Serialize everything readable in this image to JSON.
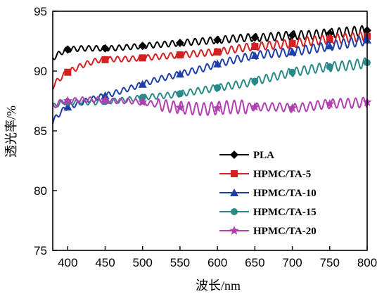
{
  "chart_data": {
    "type": "line",
    "title": "",
    "xlabel": "波长/nm",
    "ylabel": "透光率/%",
    "xlim": [
      380,
      800
    ],
    "ylim": [
      75,
      95
    ],
    "xticks": [
      400,
      450,
      500,
      550,
      600,
      650,
      700,
      750,
      800
    ],
    "yticks": [
      75,
      80,
      85,
      90,
      95
    ],
    "grid": false,
    "legend_position": "bottom-right",
    "series": [
      {
        "name": "PLA",
        "color": "#000000",
        "marker": "diamond",
        "x": [
          380,
          385,
          390,
          395,
          400,
          420,
          440,
          460,
          480,
          500,
          520,
          540,
          560,
          580,
          600,
          620,
          640,
          660,
          680,
          700,
          720,
          740,
          760,
          780,
          800
        ],
        "y": [
          91.1,
          91.3,
          91.5,
          91.7,
          91.8,
          91.9,
          91.9,
          91.9,
          92.0,
          92.1,
          92.2,
          92.3,
          92.4,
          92.5,
          92.6,
          92.7,
          92.8,
          92.8,
          92.9,
          93.0,
          93.0,
          93.1,
          93.2,
          93.3,
          93.4
        ],
        "marker_x": [
          400,
          450,
          500,
          550,
          600,
          650,
          700,
          750,
          800
        ]
      },
      {
        "name": "HPMC/TA-5",
        "color": "#d42020",
        "marker": "square",
        "x": [
          380,
          385,
          390,
          395,
          400,
          420,
          440,
          460,
          480,
          500,
          520,
          540,
          560,
          580,
          600,
          620,
          640,
          660,
          680,
          700,
          720,
          740,
          760,
          780,
          800
        ],
        "y": [
          88.7,
          89.1,
          89.4,
          89.7,
          89.9,
          90.5,
          90.9,
          91.0,
          91.0,
          91.1,
          91.2,
          91.3,
          91.4,
          91.5,
          91.6,
          91.8,
          92.0,
          92.1,
          92.2,
          92.3,
          92.5,
          92.6,
          92.7,
          92.8,
          92.9
        ],
        "marker_x": [
          400,
          450,
          500,
          550,
          600,
          650,
          700,
          750,
          800
        ]
      },
      {
        "name": "HPMC/TA-10",
        "color": "#1f3fa8",
        "marker": "triangle",
        "x": [
          380,
          385,
          390,
          395,
          400,
          420,
          440,
          460,
          480,
          500,
          520,
          540,
          560,
          580,
          600,
          620,
          640,
          660,
          680,
          700,
          720,
          740,
          760,
          780,
          800
        ],
        "y": [
          85.7,
          86.2,
          86.5,
          86.8,
          87.0,
          87.4,
          87.8,
          88.1,
          88.5,
          88.9,
          89.3,
          89.6,
          89.9,
          90.2,
          90.6,
          90.9,
          91.2,
          91.4,
          91.5,
          91.6,
          91.8,
          92.0,
          92.2,
          92.4,
          92.6
        ],
        "marker_x": [
          400,
          450,
          500,
          550,
          600,
          650,
          700,
          750,
          800
        ]
      },
      {
        "name": "HPMC/TA-15",
        "color": "#2a8a8a",
        "marker": "circle",
        "x": [
          380,
          385,
          390,
          395,
          400,
          420,
          440,
          460,
          480,
          500,
          520,
          540,
          560,
          580,
          600,
          620,
          640,
          660,
          680,
          700,
          720,
          740,
          760,
          780,
          800
        ],
        "y": [
          87.0,
          87.2,
          87.3,
          87.4,
          87.4,
          87.4,
          87.4,
          87.5,
          87.6,
          87.8,
          87.9,
          88.0,
          88.2,
          88.4,
          88.6,
          88.8,
          89.0,
          89.3,
          89.6,
          89.9,
          90.1,
          90.3,
          90.4,
          90.5,
          90.7
        ],
        "marker_x": [
          400,
          450,
          500,
          550,
          600,
          650,
          700,
          750,
          800
        ]
      },
      {
        "name": "HPMC/TA-20",
        "color": "#b23fb2",
        "marker": "star",
        "x": [
          380,
          385,
          390,
          395,
          400,
          420,
          440,
          460,
          480,
          500,
          520,
          540,
          560,
          580,
          600,
          620,
          640,
          660,
          680,
          700,
          720,
          740,
          760,
          780,
          800
        ],
        "y": [
          87.0,
          87.2,
          87.4,
          87.5,
          87.5,
          87.6,
          87.6,
          87.5,
          87.5,
          87.4,
          87.2,
          87.0,
          86.9,
          86.8,
          86.9,
          87.0,
          87.0,
          87.0,
          87.0,
          86.9,
          87.0,
          87.2,
          87.3,
          87.3,
          87.4
        ],
        "marker_x": [
          400,
          450,
          500,
          550,
          600,
          650,
          700,
          750,
          800
        ]
      }
    ]
  }
}
